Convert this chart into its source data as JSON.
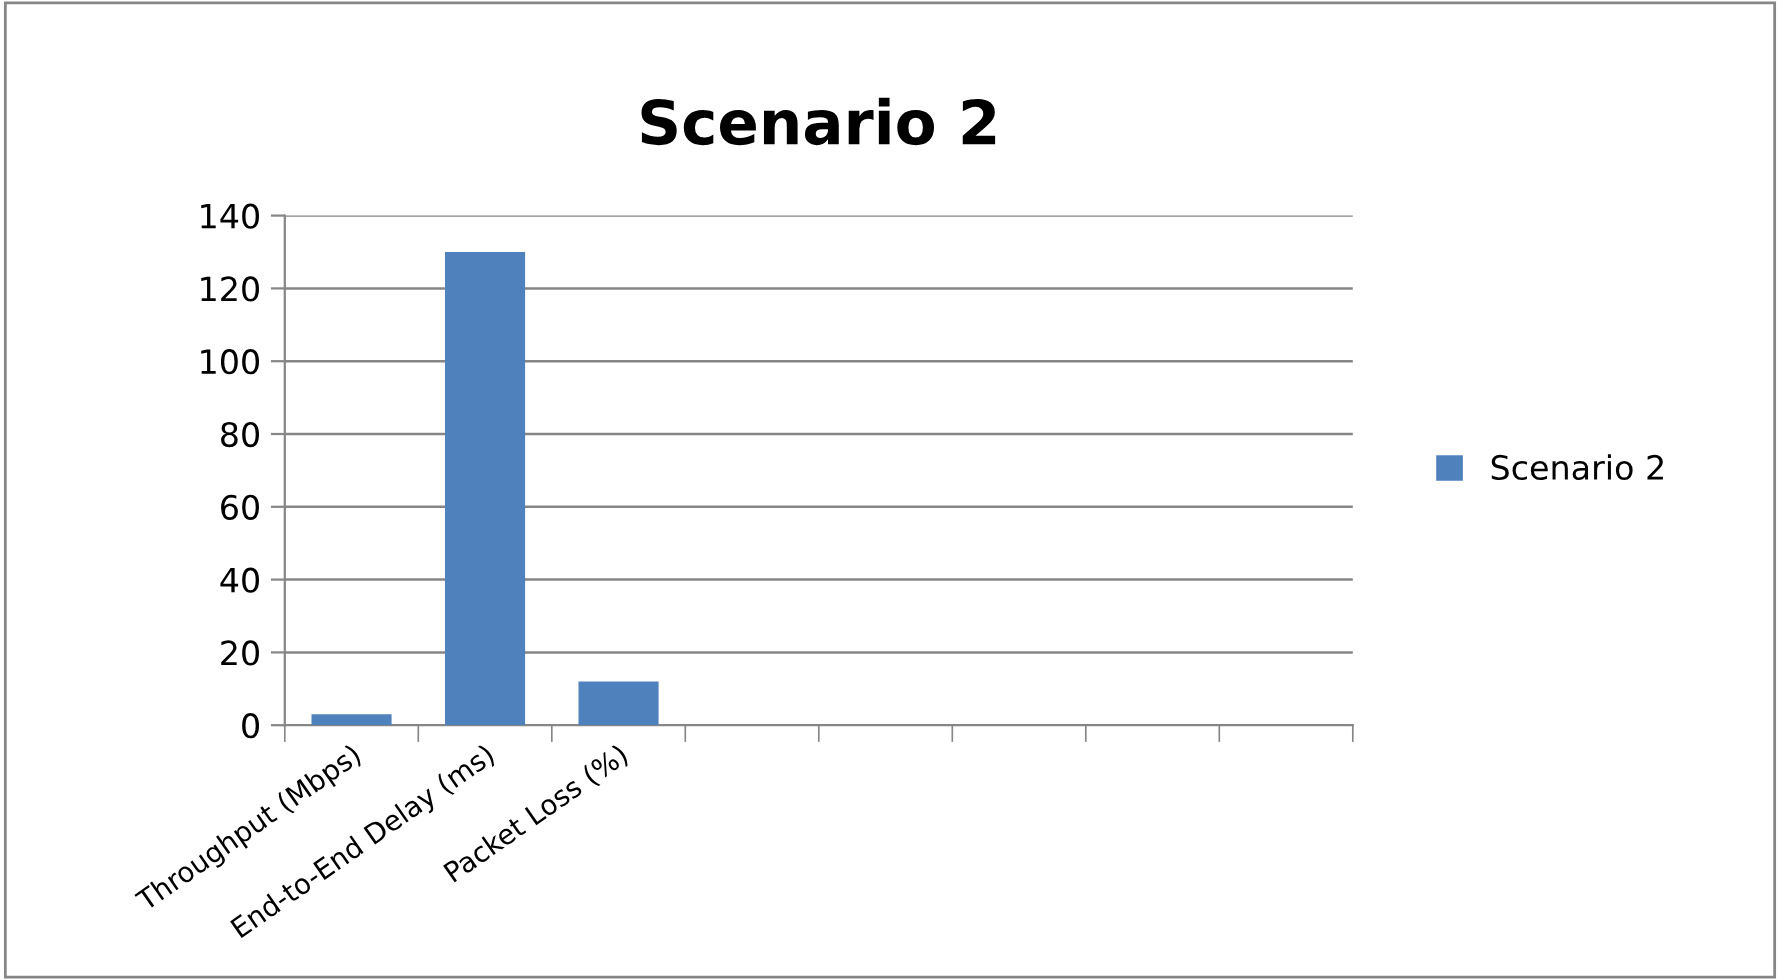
{
  "chart_data": {
    "type": "bar",
    "title": "Scenario 2",
    "categories": [
      "Throughput (Mbps)",
      "End-to-End Delay (ms)",
      "Packet Loss (%)",
      null,
      null,
      null,
      null,
      null
    ],
    "series": [
      {
        "name": "Scenario 2",
        "color": "#4f81bd",
        "values": [
          3,
          130,
          12,
          null,
          null,
          null,
          null,
          null
        ]
      }
    ],
    "ylim": [
      0,
      140
    ],
    "yticks": [
      0,
      20,
      40,
      60,
      80,
      100,
      120,
      140
    ],
    "grid": "y",
    "legend": "right"
  }
}
